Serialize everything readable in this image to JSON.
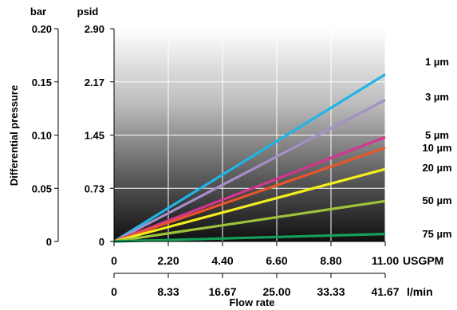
{
  "chart_data": {
    "type": "line",
    "y_axis_bar": {
      "unit_label": "bar",
      "ticks": [
        0,
        0.05,
        0.1,
        0.15,
        0.2
      ],
      "tick_labels": [
        "0",
        "0.05",
        "0.10",
        "0.15",
        "0.20"
      ],
      "ylim": [
        0,
        0.2
      ]
    },
    "y_axis_psid": {
      "unit_label": "psid",
      "ticks": [
        0,
        0.73,
        1.45,
        2.17,
        2.9
      ],
      "tick_labels": [
        "0",
        "0.73",
        "1.45",
        "2.17",
        "2.90"
      ]
    },
    "ylabel": "Differential pressure",
    "x_axis_usgpm": {
      "ticks": [
        0,
        2.2,
        4.4,
        6.6,
        8.8,
        11.0
      ],
      "tick_labels": [
        "0",
        "2.20",
        "4.40",
        "6.60",
        "8.80",
        "11.00"
      ],
      "unit_label": "USGPM",
      "xlim": [
        0,
        11.0
      ]
    },
    "x_axis_lmin": {
      "ticks": [
        0,
        8.33,
        16.67,
        25.0,
        33.33,
        41.67
      ],
      "tick_labels": [
        "0",
        "8.33",
        "16.67",
        "25.00",
        "33.33",
        "41.67"
      ],
      "unit_label": "l/min"
    },
    "xlabel": "Flow rate",
    "grid": true,
    "series": [
      {
        "name": "1 µm",
        "color": "#1fb5e6",
        "x": [
          0,
          11.0
        ],
        "y": [
          0,
          0.157
        ]
      },
      {
        "name": "3 µm",
        "color": "#a58fc9",
        "x": [
          0,
          11.0
        ],
        "y": [
          0,
          0.133
        ]
      },
      {
        "name": "5 µm",
        "color": "#d4358f",
        "x": [
          0,
          11.0
        ],
        "y": [
          0,
          0.098
        ]
      },
      {
        "name": "10 µm",
        "color": "#e8562a",
        "x": [
          0,
          11.0
        ],
        "y": [
          0,
          0.088
        ]
      },
      {
        "name": "20 µm",
        "color": "#f5ee1e",
        "x": [
          0,
          11.0
        ],
        "y": [
          0,
          0.068
        ]
      },
      {
        "name": "50 µm",
        "color": "#9cc33b",
        "x": [
          0,
          11.0
        ],
        "y": [
          0,
          0.038
        ]
      },
      {
        "name": "75 µm",
        "color": "#14a05a",
        "x": [
          0,
          11.0
        ],
        "y": [
          0,
          0.007
        ]
      }
    ]
  }
}
